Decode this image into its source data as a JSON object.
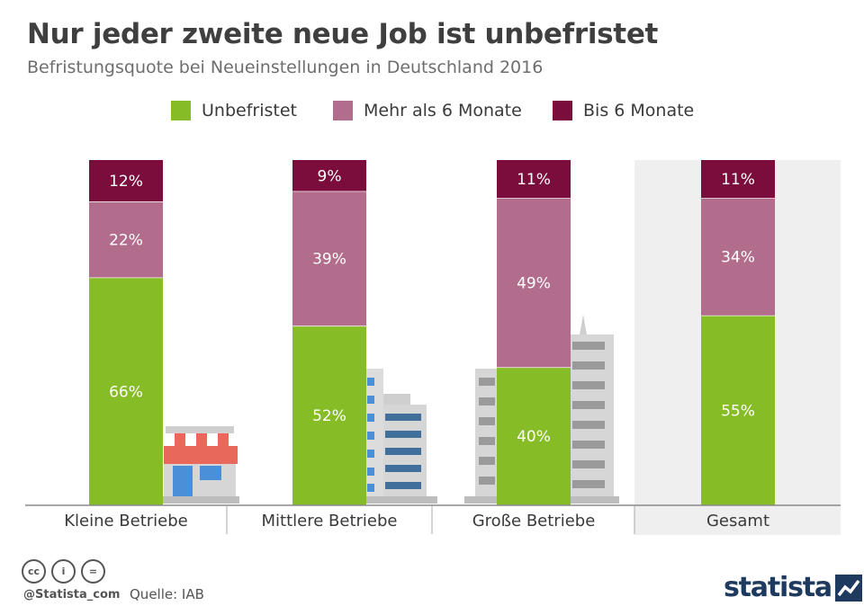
{
  "title": "Nur jeder zweite neue Job ist unbefristet",
  "subtitle": "Befristungsquote bei Neueinstellungen in Deutschland 2016",
  "colors": {
    "unbefristet": "#86bc25",
    "mehr": "#b36d8c",
    "bis": "#7a0d3c",
    "highlight_bg": "#efefef",
    "axis": "#8a8a8a"
  },
  "chart_data": {
    "type": "bar",
    "stacked": true,
    "unit": "%",
    "categories": [
      "Kleine Betriebe",
      "Mittlere Betriebe",
      "Große Betriebe",
      "Gesamt"
    ],
    "series": [
      {
        "name": "Unbefristet",
        "color": "#86bc25",
        "values": [
          66,
          52,
          40,
          55
        ]
      },
      {
        "name": "Mehr als 6 Monate",
        "color": "#b36d8c",
        "values": [
          22,
          39,
          49,
          34
        ]
      },
      {
        "name": "Bis 6 Monate",
        "color": "#7a0d3c",
        "values": [
          12,
          9,
          11,
          11
        ]
      }
    ],
    "highlight_category": "Gesamt",
    "legend_position": "top",
    "grid": false
  },
  "footer": {
    "cc_icons": [
      "cc-icon",
      "by-icon",
      "nd-icon"
    ],
    "cc_labels": [
      "cc",
      "i",
      "="
    ],
    "handle": "@Statista_com",
    "source": "Quelle: IAB",
    "brand": "statista"
  }
}
